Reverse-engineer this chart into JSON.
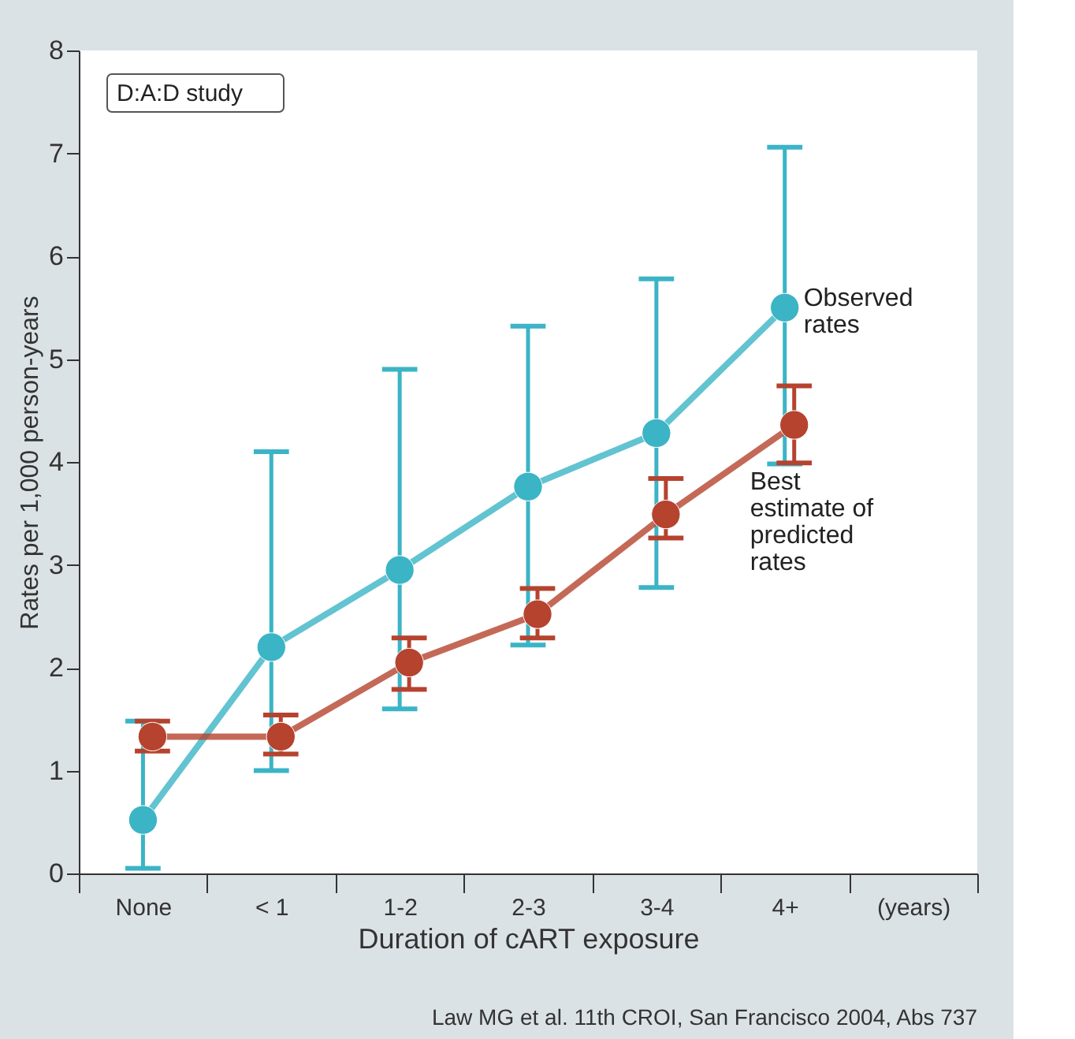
{
  "chart_data": {
    "type": "line",
    "xlabel": "Duration of cART exposure",
    "ylabel": "Rates per 1,000 person-years",
    "categories": [
      "None",
      "< 1",
      "1-2",
      "2-3",
      "3-4",
      "4+",
      "(years)"
    ],
    "ylim": [
      0,
      8
    ],
    "yticks": [
      0,
      1,
      2,
      3,
      4,
      5,
      6,
      7,
      8
    ],
    "grid": false,
    "legend": "right",
    "marker": "circle",
    "series": [
      {
        "name": "Observed rates",
        "color": "#3bb4c6",
        "values": [
          0.52,
          2.2,
          2.95,
          3.76,
          4.28,
          5.5,
          null
        ],
        "errors": [
          [
            0.05,
            1.48
          ],
          [
            1.0,
            4.1
          ],
          [
            1.6,
            4.9
          ],
          [
            2.22,
            5.32
          ],
          [
            2.78,
            5.78
          ],
          [
            3.98,
            7.06
          ],
          null
        ]
      },
      {
        "name": "Best estimate of predicted rates",
        "color": "#b5432e",
        "values": [
          1.33,
          1.33,
          2.05,
          2.52,
          3.49,
          4.36,
          null
        ],
        "errors": [
          [
            1.19,
            1.48
          ],
          [
            1.16,
            1.54
          ],
          [
            1.79,
            2.29
          ],
          [
            2.29,
            2.77
          ],
          [
            3.26,
            3.84
          ],
          [
            3.99,
            4.74
          ],
          null
        ]
      }
    ],
    "annotations": [
      "D:A:D study",
      "Law MG et al. 11th CROI, San Francisco 2004, Abs 737"
    ]
  }
}
